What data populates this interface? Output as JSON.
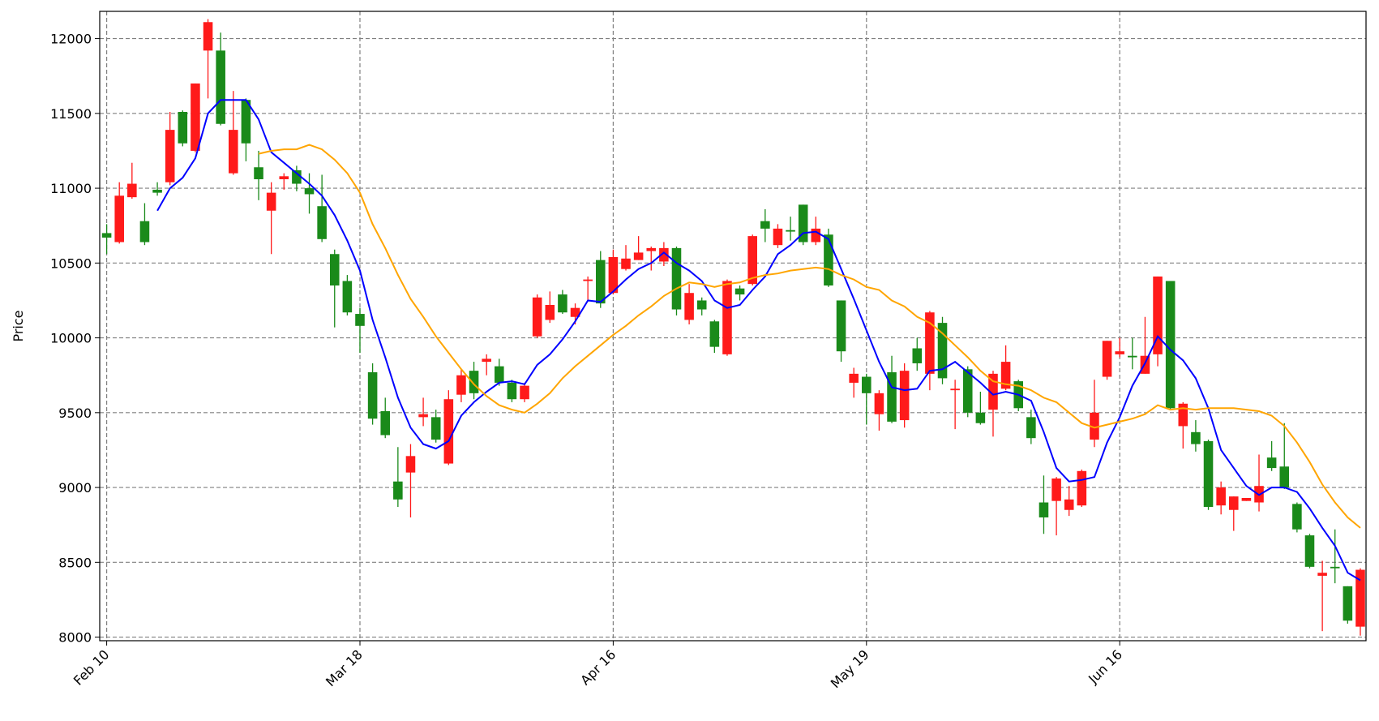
{
  "chart_data": {
    "type": "candlestick",
    "ylabel": "Price",
    "categories": [
      "Feb 10",
      null,
      null,
      null,
      null,
      null,
      null,
      null,
      null,
      null,
      null,
      null,
      null,
      null,
      null,
      null,
      null,
      null,
      null,
      null,
      "Mar 18",
      null,
      null,
      null,
      null,
      null,
      null,
      null,
      null,
      null,
      null,
      null,
      null,
      null,
      null,
      null,
      null,
      null,
      null,
      null,
      "Apr 16",
      null,
      null,
      null,
      null,
      null,
      null,
      null,
      null,
      null,
      null,
      null,
      null,
      null,
      null,
      null,
      null,
      null,
      null,
      null,
      "May 19",
      null,
      null,
      null,
      null,
      null,
      null,
      null,
      null,
      null,
      null,
      null,
      null,
      null,
      null,
      null,
      null,
      null,
      null,
      null,
      "Jun 16",
      null,
      null,
      null,
      null,
      null,
      null,
      null,
      null,
      null,
      null,
      null,
      null,
      null,
      null,
      null,
      null,
      null,
      null,
      null
    ],
    "open": [
      10700,
      10640,
      10940,
      10780,
      10990,
      11040,
      11510,
      11250,
      11920,
      11920,
      11100,
      11590,
      11140,
      10850,
      11060,
      11120,
      11000,
      10880,
      10560,
      10380,
      10160,
      9770,
      9510,
      9040,
      9100,
      9470,
      9470,
      9160,
      9620,
      9780,
      9840,
      9810,
      9700,
      9590,
      10010,
      10120,
      10290,
      10140,
      10380,
      10520,
      10300,
      10460,
      10520,
      10580,
      10510,
      10600,
      10120,
      10250,
      10110,
      9890,
      10330,
      10360,
      10780,
      10620,
      10720,
      10890,
      10640,
      10690,
      10250,
      9700,
      9740,
      9490,
      9770,
      9450,
      9930,
      9760,
      10100,
      9650,
      9790,
      9500,
      9520,
      9660,
      9710,
      9470,
      8900,
      8910,
      8850,
      8880,
      9320,
      9740,
      9890,
      9880,
      9760,
      9890,
      10380,
      9410,
      9370,
      9310,
      8880,
      8850,
      8910,
      8900,
      9200,
      9140,
      8890,
      8680,
      8410,
      8470,
      8340,
      8070
    ],
    "high": [
      10760,
      11040,
      11170,
      10900,
      11040,
      11510,
      11520,
      11700,
      12130,
      12040,
      11650,
      11600,
      11250,
      11040,
      11100,
      11150,
      11100,
      11090,
      10590,
      10420,
      10200,
      9830,
      9600,
      9270,
      9290,
      9600,
      9520,
      9650,
      9790,
      9840,
      9890,
      9860,
      9720,
      9700,
      10290,
      10310,
      10320,
      10230,
      10410,
      10580,
      10590,
      10620,
      10680,
      10610,
      10640,
      10610,
      10360,
      10270,
      10120,
      10390,
      10350,
      10690,
      10860,
      10760,
      10810,
      10890,
      10810,
      10730,
      10250,
      9800,
      9760,
      9650,
      9880,
      9830,
      10000,
      10180,
      10140,
      9720,
      9810,
      9640,
      9780,
      9950,
      9720,
      9520,
      9080,
      9070,
      9010,
      9120,
      9720,
      9980,
      10000,
      10000,
      10140,
      10410,
      10380,
      9570,
      9450,
      9320,
      9040,
      8940,
      8930,
      9220,
      9310,
      9430,
      8900,
      8690,
      8510,
      8720,
      8340,
      8460
    ],
    "low": [
      10560,
      10630,
      10930,
      10620,
      10950,
      11020,
      11280,
      11240,
      11600,
      11420,
      11090,
      11180,
      10920,
      10560,
      10990,
      10980,
      10830,
      10640,
      10070,
      10150,
      9900,
      9420,
      9330,
      8870,
      8800,
      9410,
      9300,
      9150,
      9570,
      9590,
      9750,
      9680,
      9570,
      9570,
      10000,
      10100,
      10160,
      10090,
      10250,
      10200,
      10290,
      10450,
      10520,
      10450,
      10480,
      10150,
      10090,
      10150,
      9900,
      9880,
      10250,
      10350,
      10640,
      10600,
      10650,
      10620,
      10620,
      10340,
      9840,
      9600,
      9420,
      9380,
      9430,
      9400,
      9780,
      9650,
      9690,
      9390,
      9470,
      9420,
      9340,
      9650,
      9510,
      9290,
      8690,
      8680,
      8810,
      8870,
      9270,
      9720,
      9870,
      9790,
      9760,
      9810,
      9520,
      9260,
      9240,
      8850,
      8820,
      8710,
      8910,
      8840,
      9110,
      8990,
      8700,
      8460,
      8040,
      8360,
      8090,
      8010
    ],
    "close": [
      10670,
      10950,
      11030,
      10640,
      10970,
      11390,
      11300,
      11700,
      12110,
      11430,
      11390,
      11300,
      11060,
      10970,
      11080,
      11030,
      10960,
      10660,
      10350,
      10170,
      10080,
      9460,
      9350,
      8920,
      9210,
      9490,
      9320,
      9590,
      9750,
      9630,
      9860,
      9700,
      9590,
      9680,
      10270,
      10220,
      10170,
      10200,
      10390,
      10230,
      10540,
      10530,
      10570,
      10600,
      10600,
      10190,
      10300,
      10190,
      9940,
      10380,
      10290,
      10680,
      10730,
      10730,
      10710,
      10640,
      10730,
      10350,
      9910,
      9760,
      9630,
      9630,
      9440,
      9780,
      9830,
      10170,
      9730,
      9660,
      9500,
      9430,
      9760,
      9840,
      9530,
      9330,
      8800,
      9060,
      8920,
      9110,
      9500,
      9980,
      9910,
      9870,
      9880,
      10410,
      9530,
      9560,
      9290,
      8870,
      9000,
      8940,
      8930,
      9010,
      9130,
      9000,
      8720,
      8470,
      8430,
      8460,
      8110,
      8450
    ],
    "up_color": "#ff1a1a",
    "down_color": "#1a8a1a",
    "series": [
      {
        "color": "#0000ff",
        "values": [
          null,
          null,
          null,
          null,
          10850,
          11000,
          11070,
          11200,
          11500,
          11590,
          11590,
          11590,
          11460,
          11240,
          11170,
          11100,
          11030,
          10950,
          10820,
          10650,
          10450,
          10120,
          9870,
          9600,
          9400,
          9290,
          9260,
          9310,
          9480,
          9570,
          9640,
          9700,
          9710,
          9690,
          9820,
          9890,
          9990,
          10110,
          10250,
          10240,
          10310,
          10390,
          10460,
          10500,
          10570,
          10500,
          10450,
          10380,
          10250,
          10200,
          10220,
          10320,
          10410,
          10560,
          10620,
          10700,
          10710,
          10660,
          10460,
          10260,
          10050,
          9840,
          9670,
          9650,
          9660,
          9780,
          9790,
          9840,
          9770,
          9700,
          9620,
          9640,
          9620,
          9580,
          9370,
          9130,
          9040,
          9050,
          9070,
          9300,
          9470,
          9680,
          9830,
          10010,
          9920,
          9850,
          9730,
          9530,
          9250,
          9130,
          9010,
          8950,
          9000,
          9000,
          8970,
          8860,
          8730,
          8610,
          8430,
          8380
        ]
      },
      {
        "color": "#ffa500",
        "values": [
          null,
          null,
          null,
          null,
          null,
          null,
          null,
          null,
          null,
          null,
          null,
          null,
          11230,
          11250,
          11260,
          11260,
          11290,
          11260,
          11190,
          11100,
          10970,
          10760,
          10600,
          10420,
          10260,
          10140,
          10010,
          9900,
          9790,
          9690,
          9610,
          9550,
          9520,
          9500,
          9560,
          9630,
          9730,
          9810,
          9880,
          9950,
          10020,
          10080,
          10150,
          10210,
          10280,
          10330,
          10370,
          10360,
          10340,
          10360,
          10370,
          10400,
          10420,
          10430,
          10450,
          10460,
          10470,
          10460,
          10420,
          10390,
          10340,
          10320,
          10250,
          10210,
          10140,
          10100,
          10030,
          9950,
          9870,
          9780,
          9710,
          9690,
          9680,
          9650,
          9600,
          9570,
          9500,
          9430,
          9400,
          9420,
          9440,
          9460,
          9490,
          9550,
          9520,
          9530,
          9520,
          9530,
          9530,
          9530,
          9520,
          9510,
          9480,
          9410,
          9300,
          9170,
          9020,
          8900,
          8800,
          8730
        ]
      }
    ],
    "xlim": [
      -0.55,
      99.45
    ],
    "ylim": [
      7976,
      12182
    ],
    "yticks": [
      8000,
      8500,
      9000,
      9500,
      10000,
      10500,
      11000,
      11500,
      12000
    ],
    "grid": true
  }
}
